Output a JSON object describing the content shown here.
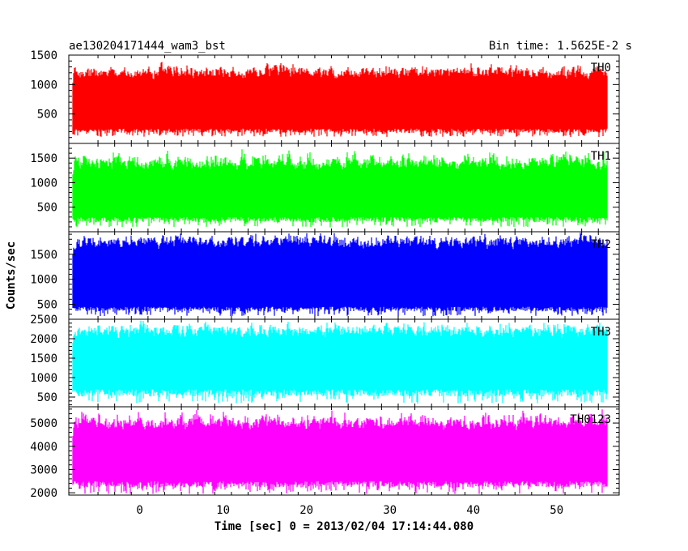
{
  "header": {
    "title": "ae130204171444_wam3_bst",
    "bin_time": "Bin time: 1.5625E-2 s"
  },
  "chart_data": {
    "type": "line",
    "title": "ae130204171444_wam3_bst",
    "xlabel": "Time [sec] 0 = 2013/02/04 17:14:44.080",
    "ylabel": "Counts/sec",
    "xlim": [
      -8.5,
      57.5
    ],
    "x_ticks": [
      0,
      10,
      20,
      30,
      40,
      50
    ],
    "x_start": -8.0,
    "x_end": 56.0,
    "panels": [
      {
        "name": "TH0",
        "color": "#ff0000",
        "ylim": [
          0,
          1500
        ],
        "y_ticks": [
          500,
          1000,
          1500
        ],
        "baseline": 90,
        "envelope": [
          110,
          1360
        ],
        "typical": [
          250,
          1150
        ]
      },
      {
        "name": "TH1",
        "color": "#00ff00",
        "ylim": [
          0,
          1800
        ],
        "y_ticks": [
          500,
          1000,
          1500
        ],
        "baseline": 30,
        "envelope": [
          90,
          1700
        ],
        "typical": [
          300,
          1300
        ]
      },
      {
        "name": "TH2",
        "color": "#0000ff",
        "ylim": [
          200,
          1950
        ],
        "y_ticks": [
          500,
          1000,
          1500
        ],
        "baseline": 200,
        "envelope": [
          260,
          1900
        ],
        "typical": [
          450,
          1700
        ]
      },
      {
        "name": "TH3",
        "color": "#00ffff",
        "ylim": [
          250,
          2500
        ],
        "y_ticks": [
          500,
          1000,
          1500,
          2000,
          2500
        ],
        "baseline": 250,
        "envelope": [
          330,
          2460
        ],
        "typical": [
          700,
          2100
        ]
      },
      {
        "name": "TH0123",
        "color": "#ff00ff",
        "ylim": [
          1900,
          5700
        ],
        "y_ticks": [
          2000,
          3000,
          4000,
          5000
        ],
        "baseline": 1900,
        "envelope": [
          1950,
          5600
        ],
        "typical": [
          2500,
          4800
        ]
      }
    ]
  }
}
